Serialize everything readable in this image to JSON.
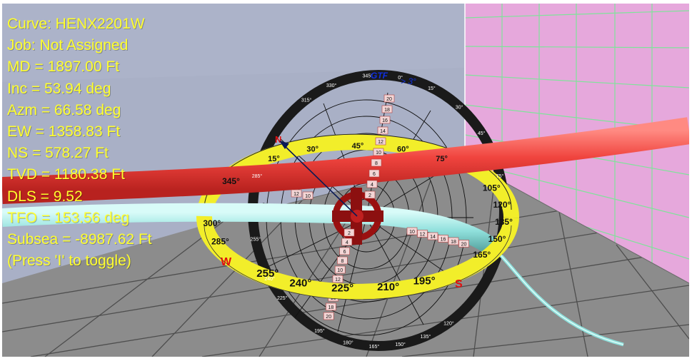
{
  "overlay": {
    "lines": [
      "Curve: HENX2201W",
      "Job: Not Assigned",
      "MD = 1897.00 Ft",
      "Inc = 53.94 deg",
      "Azm = 66.58 deg",
      "EW = 1358.83 Ft",
      "NS = 578.27 Ft",
      "TVD = 1180.38 Ft",
      "DLS = 9.52",
      "TFO = 153.56 deg",
      "Subsea = -8987.62 Ft",
      "(Press 'I' to toggle)"
    ]
  },
  "gtf_label": "GTF",
  "gtf_threshold": "> 3°",
  "compass": {
    "outer_left": [
      "345°",
      "300°",
      "285°"
    ],
    "outer_bottom": [
      "255°",
      "240°",
      "225°",
      "210°",
      "195°"
    ],
    "outer_right": [
      "165°",
      "150°",
      "135°",
      "120°",
      "105°"
    ],
    "outer_top": [
      "15°",
      "30°",
      "45°",
      "60°",
      "75°"
    ],
    "cardinal_n": "N",
    "cardinal_w": "W",
    "cardinal_s": "S"
  },
  "toolface_ring": {
    "top": [
      "345°",
      "330°",
      "315°",
      "0°",
      "15°",
      "30°"
    ],
    "left": [
      "285°",
      "255°",
      "240°",
      "225°"
    ],
    "bottom": [
      "195°",
      "180°",
      "165°",
      "150°",
      "135°",
      "120°"
    ],
    "right": [
      "45°",
      "75°"
    ]
  },
  "scale_vertical_up": [
    "20",
    "18",
    "16",
    "14",
    "12",
    "10",
    "8",
    "6",
    "4",
    "2"
  ],
  "scale_vertical_down": [
    "2",
    "4",
    "6",
    "8",
    "10",
    "12",
    "14",
    "16",
    "18",
    "20"
  ],
  "scale_horizontal": [
    "10",
    "12",
    "14",
    "16",
    "18",
    "20"
  ],
  "scale_left": [
    "10",
    "12"
  ],
  "colors": {
    "wall_left": "#a9b0c6",
    "wall_right": "#e6a8dc",
    "floor": "#8a8a8a",
    "overlay_text": "#ffff2e",
    "red_pipe": "#f0443e",
    "cyan_pipe": "#8fe0dc",
    "compass_yellow": "#f2ee2a"
  }
}
